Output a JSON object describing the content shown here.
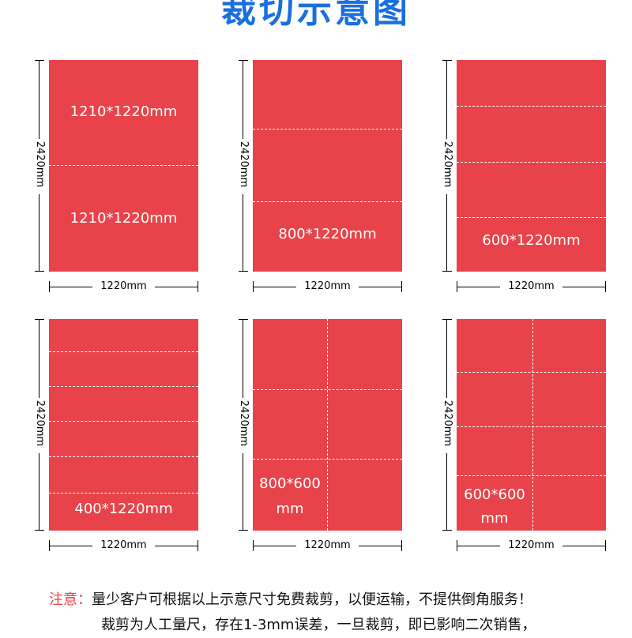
{
  "title": "裁切示意图",
  "height_label": "2420mm",
  "width_label": "1220mm",
  "panels": [
    {
      "id": "half",
      "labels": [
        "1210*1220mm",
        "1210*1220mm"
      ]
    },
    {
      "id": "third",
      "labels": [
        "800*1220mm"
      ]
    },
    {
      "id": "quarter",
      "labels": [
        "600*1220mm"
      ]
    },
    {
      "id": "sixth",
      "labels": [
        "400*1220mm"
      ]
    },
    {
      "id": "grid-800x600",
      "labels": [
        "800*600",
        "mm"
      ]
    },
    {
      "id": "grid-600x600",
      "labels": [
        "600*600",
        "mm"
      ]
    }
  ],
  "note": {
    "prefix": "注意：",
    "line1": "量少客户可根据以上示意尺寸免费裁剪，以便运输，不提供倒角服务！",
    "line2": "裁剪为人工量尺，存在1-3mm误差，一旦裁剪，即已影响二次销售，"
  },
  "colors": {
    "sheet": "#e8434a",
    "title": "#1a6fe0",
    "cut": "#ffffff"
  }
}
